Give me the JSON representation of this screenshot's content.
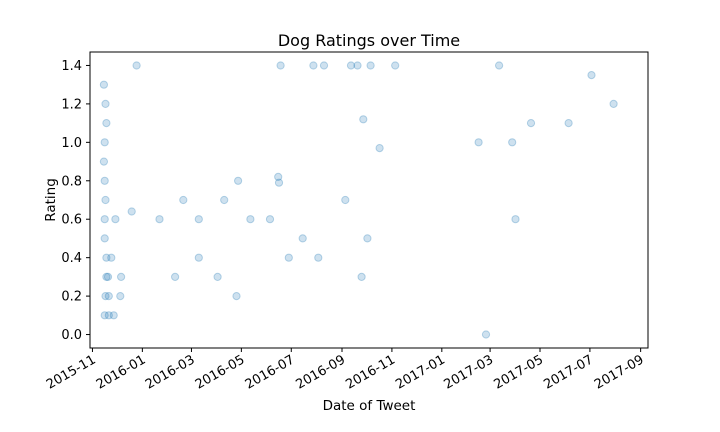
{
  "chart_data": {
    "type": "scatter",
    "title": "Dog Ratings over Time",
    "xlabel": "Date of Tweet",
    "ylabel": "Rating",
    "xlim": [
      "2015-10-29",
      "2017-09-10"
    ],
    "ylim": [
      -0.07,
      1.47
    ],
    "x_ticks": [
      "2015-11-01",
      "2016-01-01",
      "2016-03-01",
      "2016-05-01",
      "2016-07-01",
      "2016-09-01",
      "2016-11-01",
      "2017-01-01",
      "2017-03-01",
      "2017-05-01",
      "2017-07-01",
      "2017-09-01"
    ],
    "x_tick_labels": [
      "2015-11",
      "2016-01",
      "2016-03",
      "2016-05",
      "2016-07",
      "2016-09",
      "2016-11",
      "2017-01",
      "2017-03",
      "2017-05",
      "2017-07",
      "2017-09"
    ],
    "y_ticks": [
      0.0,
      0.2,
      0.4,
      0.6,
      0.8,
      1.0,
      1.2,
      1.4
    ],
    "y_tick_labels": [
      "0.0",
      "0.2",
      "0.4",
      "0.6",
      "0.8",
      "1.0",
      "1.2",
      "1.4"
    ],
    "grid": false,
    "marker_color": "#1f77b4",
    "marker_alpha": 0.22,
    "series": [
      {
        "points": [
          {
            "x": "2015-11-15",
            "y": 1.3
          },
          {
            "x": "2015-11-17",
            "y": 1.2
          },
          {
            "x": "2015-11-18",
            "y": 1.1
          },
          {
            "x": "2015-11-16",
            "y": 1.0
          },
          {
            "x": "2015-11-15",
            "y": 0.9
          },
          {
            "x": "2015-11-16",
            "y": 0.8
          },
          {
            "x": "2015-11-17",
            "y": 0.7
          },
          {
            "x": "2015-11-16",
            "y": 0.6
          },
          {
            "x": "2015-11-16",
            "y": 0.5
          },
          {
            "x": "2015-11-18",
            "y": 0.4
          },
          {
            "x": "2015-11-18",
            "y": 0.3
          },
          {
            "x": "2015-11-17",
            "y": 0.2
          },
          {
            "x": "2015-11-16",
            "y": 0.1
          },
          {
            "x": "2015-11-20",
            "y": 0.3
          },
          {
            "x": "2015-11-21",
            "y": 0.2
          },
          {
            "x": "2015-11-21",
            "y": 0.1
          },
          {
            "x": "2015-11-24",
            "y": 0.4
          },
          {
            "x": "2015-11-27",
            "y": 0.1
          },
          {
            "x": "2015-11-29",
            "y": 0.6
          },
          {
            "x": "2015-12-05",
            "y": 0.2
          },
          {
            "x": "2015-12-06",
            "y": 0.3
          },
          {
            "x": "2015-12-19",
            "y": 0.64
          },
          {
            "x": "2015-12-25",
            "y": 1.4
          },
          {
            "x": "2016-01-22",
            "y": 0.6
          },
          {
            "x": "2016-02-10",
            "y": 0.3
          },
          {
            "x": "2016-02-20",
            "y": 0.7
          },
          {
            "x": "2016-03-10",
            "y": 0.6
          },
          {
            "x": "2016-03-10",
            "y": 0.4
          },
          {
            "x": "2016-04-02",
            "y": 0.3
          },
          {
            "x": "2016-04-10",
            "y": 0.7
          },
          {
            "x": "2016-04-25",
            "y": 0.2
          },
          {
            "x": "2016-04-27",
            "y": 0.8
          },
          {
            "x": "2016-05-12",
            "y": 0.6
          },
          {
            "x": "2016-06-05",
            "y": 0.6
          },
          {
            "x": "2016-06-15",
            "y": 0.82
          },
          {
            "x": "2016-06-16",
            "y": 0.79
          },
          {
            "x": "2016-06-18",
            "y": 1.4
          },
          {
            "x": "2016-06-28",
            "y": 0.4
          },
          {
            "x": "2016-07-15",
            "y": 0.5
          },
          {
            "x": "2016-07-28",
            "y": 1.4
          },
          {
            "x": "2016-08-03",
            "y": 0.4
          },
          {
            "x": "2016-08-10",
            "y": 1.4
          },
          {
            "x": "2016-09-05",
            "y": 0.7
          },
          {
            "x": "2016-09-12",
            "y": 1.4
          },
          {
            "x": "2016-09-20",
            "y": 1.4
          },
          {
            "x": "2016-09-25",
            "y": 0.3
          },
          {
            "x": "2016-09-27",
            "y": 1.12
          },
          {
            "x": "2016-10-02",
            "y": 0.5
          },
          {
            "x": "2016-10-06",
            "y": 1.4
          },
          {
            "x": "2016-10-17",
            "y": 0.97
          },
          {
            "x": "2016-11-05",
            "y": 1.4
          },
          {
            "x": "2017-02-15",
            "y": 1.0
          },
          {
            "x": "2017-02-24",
            "y": 0.0
          },
          {
            "x": "2017-03-12",
            "y": 1.4
          },
          {
            "x": "2017-03-28",
            "y": 1.0
          },
          {
            "x": "2017-04-01",
            "y": 0.6
          },
          {
            "x": "2017-04-20",
            "y": 1.1
          },
          {
            "x": "2017-06-05",
            "y": 1.1
          },
          {
            "x": "2017-07-03",
            "y": 1.35
          },
          {
            "x": "2017-07-30",
            "y": 1.2
          }
        ]
      }
    ]
  }
}
